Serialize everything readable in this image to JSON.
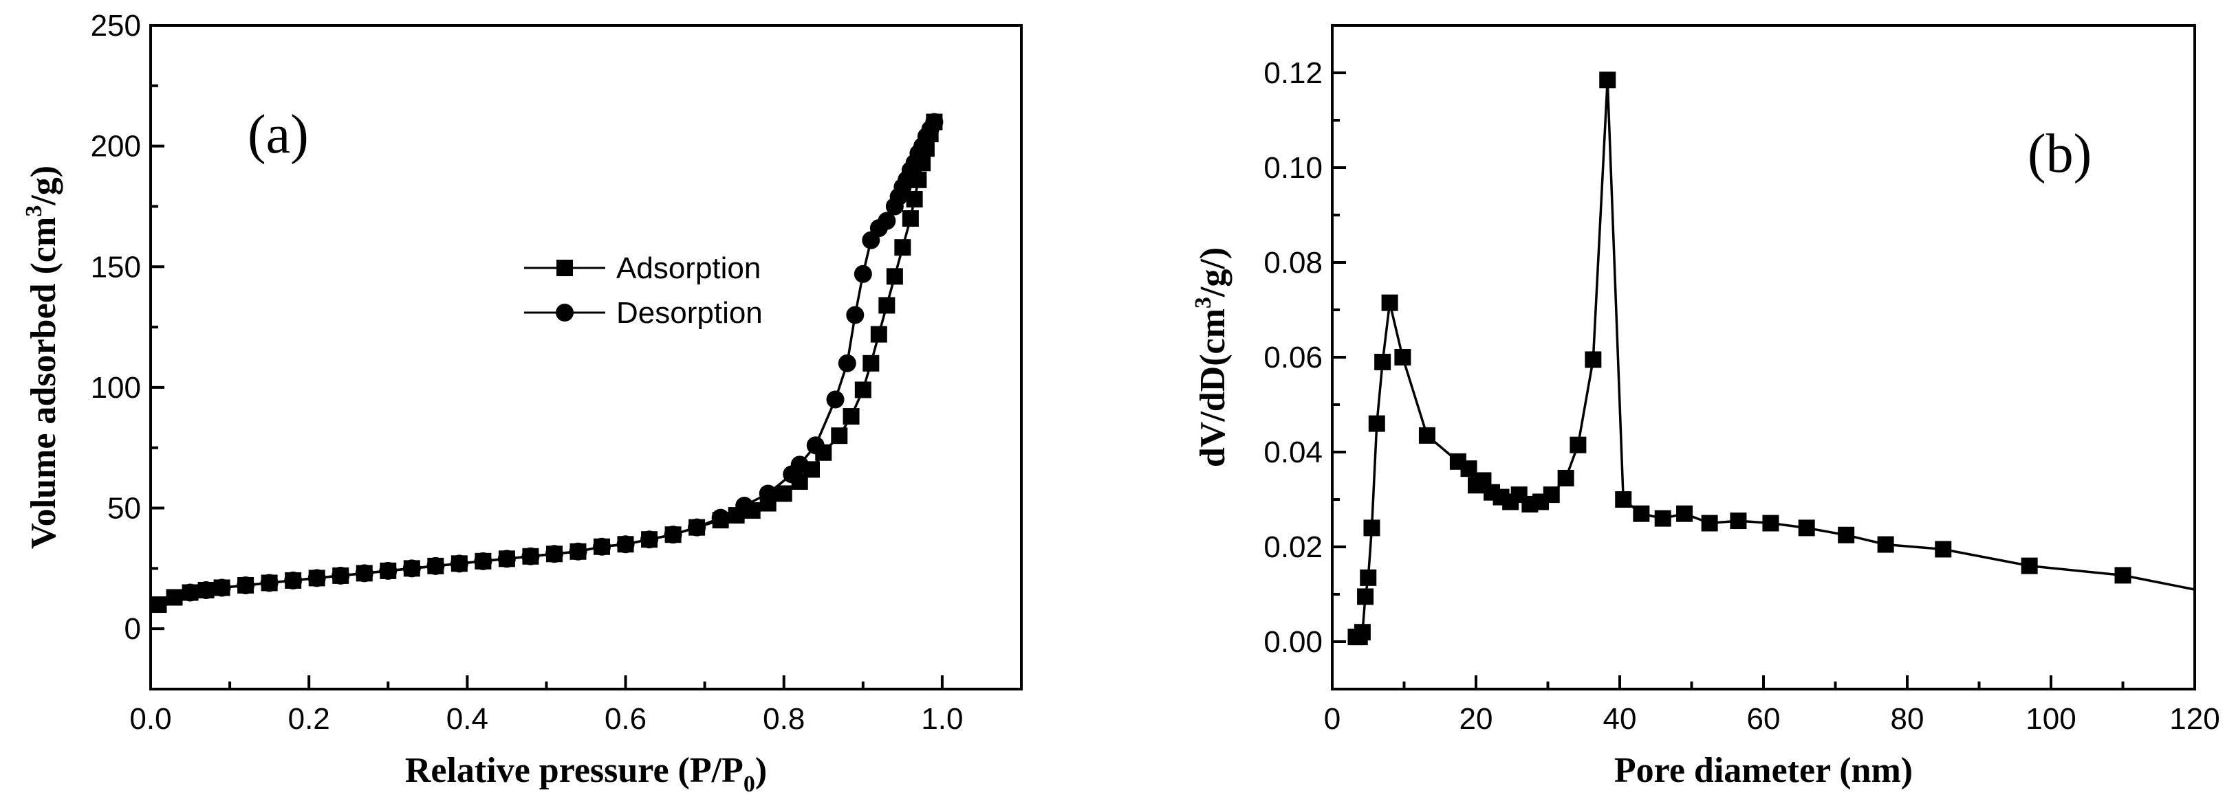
{
  "chart_data": [
    {
      "type": "scatter",
      "panel_label": "(a)",
      "xlabel": {
        "main": "Relative pressure (P/P",
        "sub": "0",
        "end": ")"
      },
      "ylabel": {
        "main": "Volume adsorbed (cm",
        "sup": "3",
        "end": "/g)"
      },
      "xlim": [
        0.0,
        1.1
      ],
      "ylim": [
        -25,
        250
      ],
      "xticks": [
        0.0,
        0.2,
        0.4,
        0.6,
        0.8,
        1.0
      ],
      "xtick_labels": [
        "0.0",
        "0.2",
        "0.4",
        "0.6",
        "0.8",
        "1.0"
      ],
      "yticks": [
        0,
        50,
        100,
        150,
        200,
        250
      ],
      "ytick_labels": [
        "0",
        "50",
        "100",
        "150",
        "200",
        "250"
      ],
      "legend_position": "center-right",
      "series": [
        {
          "name": "Adsorption",
          "marker": "square",
          "x": [
            0.01,
            0.03,
            0.05,
            0.07,
            0.09,
            0.12,
            0.15,
            0.18,
            0.21,
            0.24,
            0.27,
            0.3,
            0.33,
            0.36,
            0.39,
            0.42,
            0.45,
            0.48,
            0.51,
            0.54,
            0.57,
            0.6,
            0.63,
            0.66,
            0.69,
            0.72,
            0.74,
            0.76,
            0.78,
            0.8,
            0.82,
            0.835,
            0.85,
            0.87,
            0.885,
            0.9,
            0.91,
            0.92,
            0.93,
            0.94,
            0.95,
            0.96,
            0.965,
            0.97,
            0.975,
            0.98,
            0.985,
            0.99
          ],
          "y": [
            10,
            13,
            15,
            16,
            17,
            18,
            19,
            20,
            21,
            22,
            23,
            24,
            25,
            26,
            27,
            28,
            29,
            30,
            31,
            32,
            34,
            35,
            37,
            39,
            42,
            45,
            47,
            49,
            52,
            56,
            61,
            66,
            73,
            80,
            88,
            99,
            110,
            122,
            134,
            146,
            158,
            170,
            178,
            186,
            193,
            199,
            205,
            210
          ]
        },
        {
          "name": "Desorption",
          "marker": "circle",
          "x": [
            0.99,
            0.985,
            0.98,
            0.975,
            0.97,
            0.965,
            0.96,
            0.955,
            0.95,
            0.945,
            0.94,
            0.93,
            0.92,
            0.91,
            0.9,
            0.89,
            0.88,
            0.865,
            0.84,
            0.82,
            0.81,
            0.78,
            0.75,
            0.72,
            0.69,
            0.66,
            0.63,
            0.6,
            0.57,
            0.54,
            0.51,
            0.48,
            0.45,
            0.42,
            0.39,
            0.36,
            0.33,
            0.3,
            0.27,
            0.24,
            0.21,
            0.18,
            0.15,
            0.12,
            0.09,
            0.07,
            0.05
          ],
          "y": [
            210,
            207,
            204,
            200,
            197,
            193,
            190,
            186,
            183,
            179,
            175,
            169,
            166,
            161,
            147,
            130,
            110,
            95,
            76,
            68,
            64,
            56,
            51,
            46,
            42,
            39,
            37,
            35,
            34,
            32,
            31,
            30,
            29,
            28,
            27,
            26,
            25,
            24,
            23,
            22,
            21,
            20,
            19,
            18,
            17,
            16,
            15
          ]
        }
      ]
    },
    {
      "type": "line",
      "panel_label": "(b)",
      "xlabel": {
        "main": "Pore diameter (nm)"
      },
      "ylabel": {
        "main": "dV/dD(cm",
        "sup": "3",
        "end": "/g/)"
      },
      "xlim": [
        0,
        120
      ],
      "ylim": [
        -0.01,
        0.13
      ],
      "xticks": [
        0,
        20,
        40,
        60,
        80,
        100,
        120
      ],
      "xtick_labels": [
        "0",
        "20",
        "40",
        "60",
        "80",
        "100",
        "120"
      ],
      "yticks": [
        0.0,
        0.02,
        0.04,
        0.06,
        0.08,
        0.1,
        0.12
      ],
      "ytick_labels": [
        "0.00",
        "0.02",
        "0.04",
        "0.06",
        "0.08",
        "0.10",
        "0.12"
      ],
      "series": [
        {
          "name": "dV/dD",
          "marker": "square",
          "x": [
            3.3,
            3.8,
            4.2,
            4.6,
            5.0,
            5.5,
            6.2,
            7.0,
            8.0,
            9.8,
            13.2,
            17.5,
            19.0,
            20.0,
            21.0,
            22.2,
            23.5,
            24.8,
            26.0,
            27.5,
            29.0,
            30.5,
            32.5,
            34.2,
            36.3,
            38.3,
            40.5,
            43.0,
            46.0,
            49.0,
            52.5,
            56.5,
            61.0,
            66.0,
            71.5,
            77.0,
            85.0,
            97.0,
            110.0,
            120.0
          ],
          "y": [
            0.001,
            0.001,
            0.002,
            0.0095,
            0.0135,
            0.024,
            0.046,
            0.059,
            0.0715,
            0.06,
            0.0435,
            0.038,
            0.0365,
            0.033,
            0.034,
            0.0315,
            0.0305,
            0.0295,
            0.031,
            0.029,
            0.0295,
            0.031,
            0.0345,
            0.0415,
            0.0595,
            0.1185,
            0.03,
            0.027,
            0.026,
            0.027,
            0.025,
            0.0255,
            0.025,
            0.024,
            0.0225,
            0.0205,
            0.0195,
            0.016,
            0.014,
            0.011
          ],
          "marker_count": 39
        }
      ]
    }
  ]
}
